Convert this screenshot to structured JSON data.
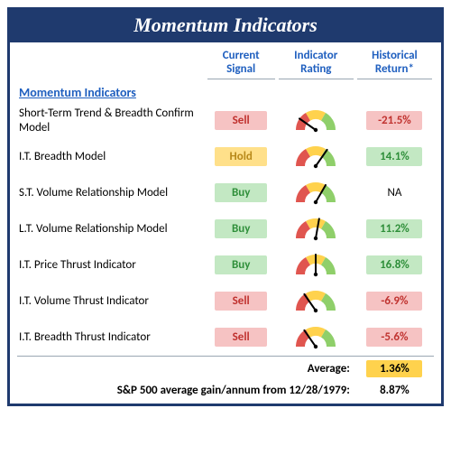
{
  "title": "Momentum Indicators",
  "columns": {
    "signal": "Current Signal",
    "rating": "Indicator Rating",
    "return": "Historical Return*"
  },
  "section_header": "Momentum Indicators",
  "signal_styles": {
    "Sell": {
      "bg": "#f6c3c3",
      "fg": "#c0322f"
    },
    "Hold": {
      "bg": "#ffe08a",
      "fg": "#b8891a"
    },
    "Buy": {
      "bg": "#c3e8c3",
      "fg": "#2f8f3a"
    }
  },
  "return_styles": {
    "neg": {
      "bg": "#f6c3c3",
      "fg": "#c0322f"
    },
    "pos": {
      "bg": "#c3e8c3",
      "fg": "#2f8f3a"
    },
    "na": {
      "bg": "transparent",
      "fg": "#000000"
    }
  },
  "gauge_colors": {
    "red": "#e0554f",
    "yellow": "#ffd24d",
    "green": "#8fcf6a",
    "needle": "#000000"
  },
  "rows": [
    {
      "name": "Short-Term Trend & Breadth Confirm Model",
      "signal": "Sell",
      "needle": -55,
      "return": "-21.5%",
      "ret_kind": "neg"
    },
    {
      "name": "I.T. Breadth Model",
      "signal": "Hold",
      "needle": 35,
      "return": "14.1%",
      "ret_kind": "pos"
    },
    {
      "name": "S.T. Volume Relationship Model",
      "signal": "Buy",
      "needle": 30,
      "return": "NA",
      "ret_kind": "na"
    },
    {
      "name": "L.T. Volume Relationship Model",
      "signal": "Buy",
      "needle": 10,
      "return": "11.2%",
      "ret_kind": "pos"
    },
    {
      "name": "I.T. Price Thrust Indicator",
      "signal": "Buy",
      "needle": 0,
      "return": "16.8%",
      "ret_kind": "pos"
    },
    {
      "name": "I.T. Volume Thrust Indicator",
      "signal": "Sell",
      "needle": -35,
      "return": "-6.9%",
      "ret_kind": "neg"
    },
    {
      "name": "I.T. Breadth Thrust Indicator",
      "signal": "Sell",
      "needle": -35,
      "return": "-5.6%",
      "ret_kind": "neg"
    }
  ],
  "footer": {
    "average_label": "Average:",
    "average_value": "1.36%",
    "sp_label": "S&P 500 average gain/annum from 12/28/1979:",
    "sp_value": "8.87%"
  }
}
